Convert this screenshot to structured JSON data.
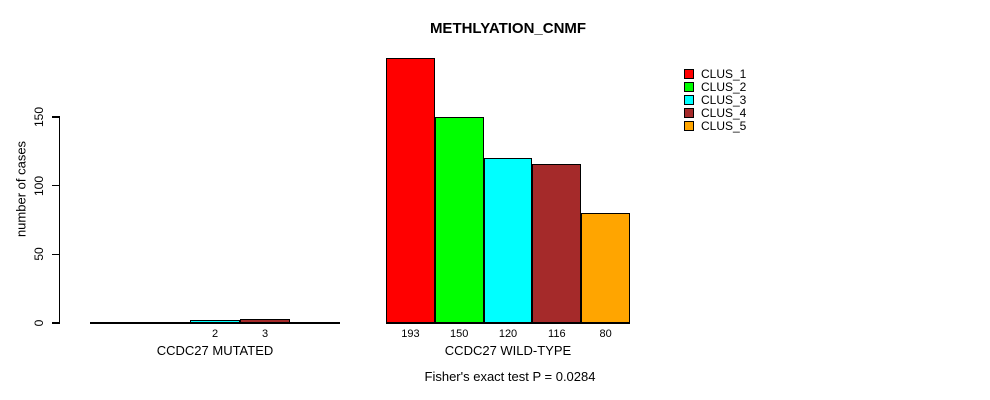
{
  "chart_data": {
    "type": "bar",
    "title": "METHLYATION_CNMF",
    "ylabel": "number of cases",
    "footnote": "Fisher's exact test P = 0.0284",
    "yticks": [
      0,
      50,
      100,
      150
    ],
    "ylim": [
      0,
      200
    ],
    "grid": false,
    "legend_position": "top-right",
    "legend": [
      {
        "label": "CLUS_1",
        "color": "#FF0000"
      },
      {
        "label": "CLUS_2",
        "color": "#00FF00"
      },
      {
        "label": "CLUS_3",
        "color": "#00FFFF"
      },
      {
        "label": "CLUS_4",
        "color": "#A52A2A"
      },
      {
        "label": "CLUS_5",
        "color": "#FFA500"
      }
    ],
    "groups": [
      {
        "label": "CCDC27 MUTATED",
        "values": [
          0,
          0,
          2,
          3,
          0
        ],
        "bar_labels": [
          "",
          "",
          "2",
          "3",
          ""
        ]
      },
      {
        "label": "CCDC27 WILD-TYPE",
        "values": [
          193,
          150,
          120,
          116,
          80
        ],
        "bar_labels": [
          "193",
          "150",
          "120",
          "116",
          "80"
        ]
      }
    ]
  }
}
